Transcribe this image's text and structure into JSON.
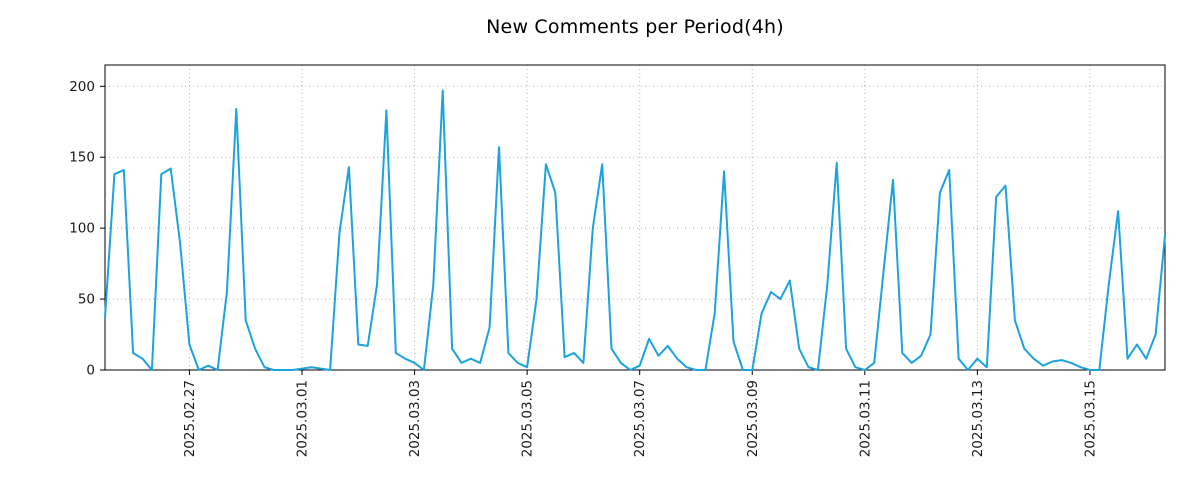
{
  "chart_data": {
    "type": "line",
    "title": "New Comments per Period(4h)",
    "line_color": "#1ba3dd",
    "grid": true,
    "legend": "none",
    "ylim": [
      0,
      215
    ],
    "y_ticks": [
      0,
      50,
      100,
      150,
      200
    ],
    "x_tick_labels": [
      "2025.02.27",
      "2025.03.01",
      "2025.03.03",
      "2025.03.05",
      "2025.03.07",
      "2025.03.09",
      "2025.03.11",
      "2025.03.13",
      "2025.03.15"
    ],
    "x_tick_indices": [
      9,
      21,
      33,
      45,
      57,
      69,
      81,
      93,
      105
    ],
    "points_per_day": 6,
    "values": [
      37,
      138,
      141,
      12,
      8,
      0,
      138,
      142,
      90,
      18,
      0,
      3,
      0,
      55,
      184,
      35,
      15,
      2,
      0,
      0,
      0,
      1,
      2,
      1,
      0,
      97,
      143,
      18,
      17,
      60,
      183,
      12,
      8,
      5,
      0,
      60,
      197,
      15,
      5,
      8,
      5,
      30,
      157,
      12,
      5,
      2,
      50,
      145,
      125,
      9,
      12,
      5,
      100,
      145,
      15,
      5,
      0,
      3,
      22,
      10,
      17,
      8,
      2,
      0,
      0,
      40,
      140,
      20,
      0,
      0,
      40,
      55,
      50,
      63,
      15,
      2,
      0,
      60,
      146,
      15,
      2,
      0,
      5,
      70,
      134,
      12,
      5,
      10,
      25,
      125,
      141,
      8,
      0,
      8,
      2,
      122,
      130,
      35,
      15,
      8,
      3,
      6,
      7,
      5,
      2,
      0,
      0,
      60,
      112,
      8,
      18,
      8,
      25,
      95
    ]
  }
}
